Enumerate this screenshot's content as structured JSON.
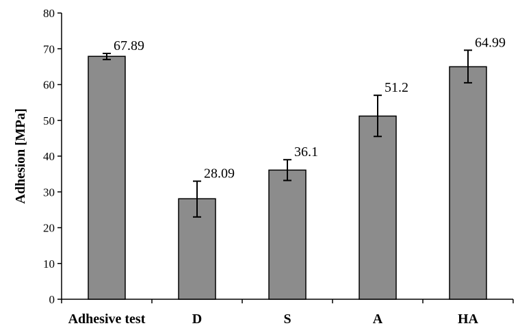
{
  "chart_data": {
    "type": "bar",
    "title": "",
    "xlabel": "",
    "ylabel": "Adhesion [MPa]",
    "ylim": [
      0,
      80
    ],
    "yticks": [
      0,
      10,
      20,
      30,
      40,
      50,
      60,
      70,
      80
    ],
    "grid": false,
    "legend": "none",
    "bar_color": "#8c8c8c",
    "categories": [
      "Adhesive test",
      "D",
      "S",
      "A",
      "HA"
    ],
    "values": [
      67.89,
      28.09,
      36.1,
      51.2,
      64.99
    ],
    "value_labels": [
      "67.89",
      "28.09",
      "36.1",
      "51.2",
      "64.99"
    ],
    "error_low": [
      67.0,
      23.0,
      33.2,
      45.5,
      60.5
    ],
    "error_high": [
      68.7,
      33.0,
      39.0,
      57.0,
      69.6
    ]
  }
}
